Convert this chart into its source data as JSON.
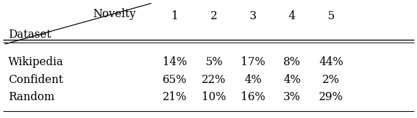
{
  "col_header_top": "Novelty",
  "col_header_left": "Dataset",
  "columns": [
    "1",
    "2",
    "3",
    "4",
    "5"
  ],
  "rows": [
    {
      "label": "Wikipedia",
      "values": [
        "14%",
        "5%",
        "17%",
        "8%",
        "44%"
      ]
    },
    {
      "label": "Confident",
      "values": [
        "65%",
        "22%",
        "4%",
        "4%",
        "2%"
      ]
    },
    {
      "label": "Random",
      "values": [
        "21%",
        "10%",
        "16%",
        "3%",
        "29%"
      ]
    }
  ],
  "font_size": 11.5,
  "bg_color": "#ffffff",
  "text_color": "#000000",
  "fig_width": 6.08,
  "fig_height": 1.72,
  "dpi": 100
}
